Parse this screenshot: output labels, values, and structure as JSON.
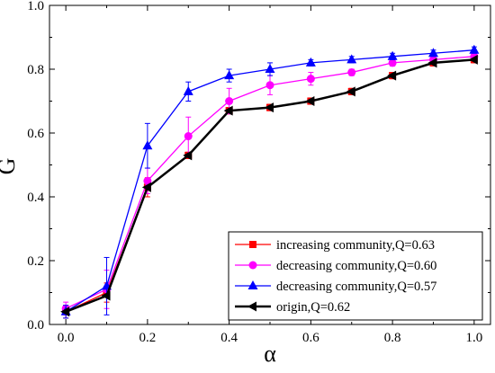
{
  "chart_data": {
    "type": "line",
    "xlabel": "α",
    "ylabel": "G",
    "xlim": [
      -0.04,
      1.04
    ],
    "ylim": [
      0,
      1.0
    ],
    "x_ticks": [
      "0.0",
      "0.2",
      "0.4",
      "0.6",
      "0.8",
      "1.0"
    ],
    "y_ticks": [
      "0.0",
      "0.2",
      "0.4",
      "0.6",
      "0.8",
      "1.0"
    ],
    "x": [
      0.0,
      0.1,
      0.2,
      0.3,
      0.4,
      0.5,
      0.6,
      0.7,
      0.8,
      0.9,
      1.0
    ],
    "legend_position": "bottom-right",
    "grid": false,
    "series": [
      {
        "name": "increasing community,Q=0.63",
        "color": "#ff0000",
        "marker": "square",
        "values": [
          0.04,
          0.1,
          0.43,
          0.53,
          0.67,
          0.68,
          0.7,
          0.73,
          0.78,
          0.82,
          0.83
        ],
        "errors": [
          0.02,
          0.03,
          0.03,
          0.01,
          0.01,
          0.01,
          0.01,
          0.01,
          0.01,
          0.01,
          0.01
        ]
      },
      {
        "name": "decreasing community,Q=0.60",
        "color": "#ff00ff",
        "marker": "circle",
        "values": [
          0.05,
          0.11,
          0.45,
          0.59,
          0.7,
          0.75,
          0.77,
          0.79,
          0.82,
          0.83,
          0.84
        ],
        "errors": [
          0.02,
          0.06,
          0.04,
          0.06,
          0.04,
          0.03,
          0.02,
          0.01,
          0.01,
          0.01,
          0.01
        ]
      },
      {
        "name": "decreasing community,Q=0.57",
        "color": "#0000ff",
        "marker": "triangle",
        "values": [
          0.04,
          0.12,
          0.56,
          0.73,
          0.78,
          0.8,
          0.82,
          0.83,
          0.84,
          0.85,
          0.86
        ],
        "errors": [
          0.02,
          0.09,
          0.07,
          0.03,
          0.02,
          0.02,
          0.01,
          0.01,
          0.01,
          0.01,
          0.01
        ]
      },
      {
        "name": "origin,Q=0.62",
        "color": "#000000",
        "marker": "left-triangle",
        "values": [
          0.04,
          0.09,
          0.43,
          0.53,
          0.67,
          0.68,
          0.7,
          0.73,
          0.78,
          0.82,
          0.83
        ],
        "errors": [
          0.0,
          0.0,
          0.0,
          0.0,
          0.0,
          0.0,
          0.0,
          0.0,
          0.0,
          0.0,
          0.0
        ]
      }
    ]
  }
}
